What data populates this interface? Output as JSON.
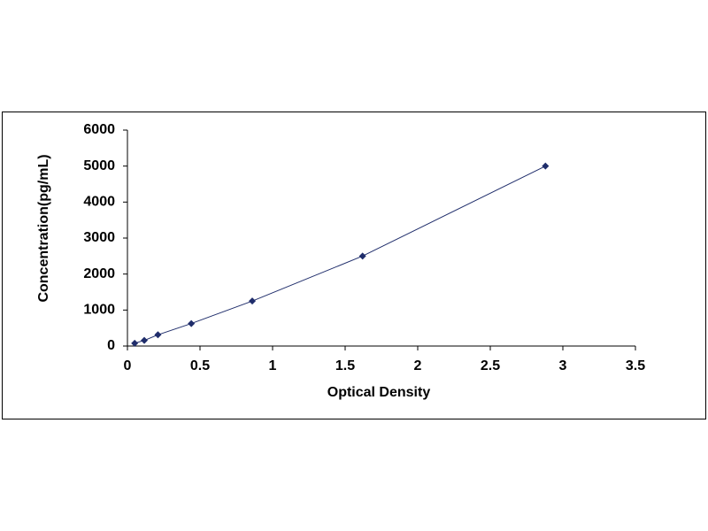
{
  "chart_data": {
    "type": "line",
    "x_label": "Optical Density",
    "y_label": "Concentration(pg/mL)",
    "x": [
      0.05,
      0.116,
      0.21,
      0.44,
      0.86,
      1.62,
      2.88
    ],
    "values": [
      78,
      156,
      312,
      625,
      1250,
      2500,
      5000
    ],
    "color": "#1f2d6b",
    "xlim": [
      0,
      3.5
    ],
    "xticks": [
      0,
      0.5,
      1,
      1.5,
      2,
      2.5,
      3,
      3.5
    ],
    "ylim": [
      0,
      6000
    ],
    "yticks": [
      0,
      1000,
      2000,
      3000,
      4000,
      5000,
      6000
    ],
    "grid": false
  }
}
